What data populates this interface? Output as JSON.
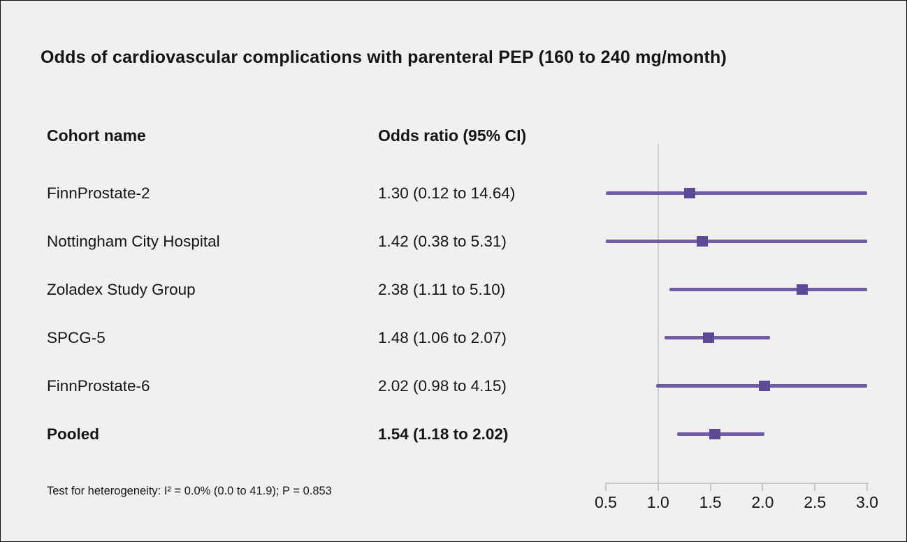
{
  "title": "Odds of cardiovascular complications with parenteral PEP (160 to 240 mg/month)",
  "columns": {
    "cohort": "Cohort name",
    "or": "Odds ratio (95% CI)"
  },
  "footnote": "Test for heterogeneity: I² = 0.0% (0.0 to 41.9); P = 0.853",
  "colors": {
    "background": "#f1f0ee",
    "text": "#151515",
    "ci_line": "#6e5ea6",
    "marker": "#5b4b97",
    "reference_line": "#cecbd8",
    "axis": "#c8c6c2"
  },
  "chart_data": {
    "type": "forest",
    "title": "Odds of cardiovascular complications with parenteral PEP (160 to 240 mg/month)",
    "xlabel": "",
    "ylabel": "",
    "axis": {
      "min": 0.5,
      "max": 3.0,
      "ticks": [
        "0.5",
        "1.0",
        "1.5",
        "2.0",
        "2.5",
        "3.0"
      ],
      "tick_values": [
        0.5,
        1.0,
        1.5,
        2.0,
        2.5,
        3.0
      ],
      "reference_value": 1.0
    },
    "rows": [
      {
        "name": "FinnProstate-2",
        "label": "1.30 (0.12 to 14.64)",
        "estimate": 1.3,
        "lower": 0.12,
        "upper": 14.64,
        "pooled": false
      },
      {
        "name": "Nottingham City Hospital",
        "label": "1.42 (0.38 to 5.31)",
        "estimate": 1.42,
        "lower": 0.38,
        "upper": 5.31,
        "pooled": false
      },
      {
        "name": "Zoladex Study Group",
        "label": "2.38 (1.11 to 5.10)",
        "estimate": 2.38,
        "lower": 1.11,
        "upper": 5.1,
        "pooled": false
      },
      {
        "name": "SPCG-5",
        "label": "1.48 (1.06 to 2.07)",
        "estimate": 1.48,
        "lower": 1.06,
        "upper": 2.07,
        "pooled": false
      },
      {
        "name": "FinnProstate-6",
        "label": "2.02 (0.98 to 4.15)",
        "estimate": 2.02,
        "lower": 0.98,
        "upper": 4.15,
        "pooled": false
      },
      {
        "name": "Pooled",
        "label": "1.54 (1.18 to 2.02)",
        "estimate": 1.54,
        "lower": 1.18,
        "upper": 2.02,
        "pooled": true
      }
    ]
  }
}
